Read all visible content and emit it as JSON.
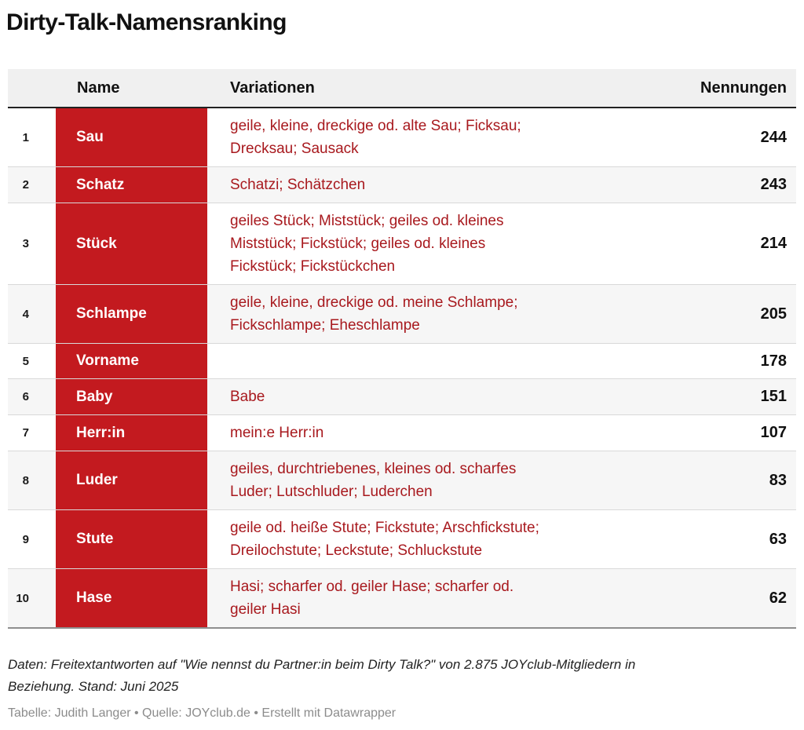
{
  "title": "Dirty-Talk-Namensranking",
  "colors": {
    "accent_red": "#c31a1f",
    "variation_text_red": "#a8191e",
    "header_bg": "#f0f0f0",
    "row_alt_bg": "#f6f6f6"
  },
  "table": {
    "headers": {
      "rank": "",
      "name": "Name",
      "variations": "Variationen",
      "mentions": "Nennungen"
    },
    "rows": [
      {
        "rank": "1",
        "name": "Sau",
        "variations": "geile, kleine, dreckige od. alte Sau; Ficksau;\nDrecksau; Sausack",
        "mentions": "244"
      },
      {
        "rank": "2",
        "name": "Schatz",
        "variations": "Schatzi; Schätzchen",
        "mentions": "243"
      },
      {
        "rank": "3",
        "name": "Stück",
        "variations": "geiles Stück; Miststück; geiles od. kleines\nMiststück; Fickstück; geiles od. kleines\nFickstück; Fickstückchen",
        "mentions": "214"
      },
      {
        "rank": "4",
        "name": "Schlampe",
        "variations": "geile, kleine, dreckige od. meine Schlampe;\nFickschlampe; Eheschlampe",
        "mentions": "205"
      },
      {
        "rank": "5",
        "name": "Vorname",
        "variations": "",
        "mentions": "178"
      },
      {
        "rank": "6",
        "name": "Baby",
        "variations": "Babe",
        "mentions": "151"
      },
      {
        "rank": "7",
        "name": "Herr:in",
        "variations": "mein:e Herr:in",
        "mentions": "107"
      },
      {
        "rank": "8",
        "name": "Luder",
        "variations": "geiles, durchtriebenes, kleines od. scharfes\nLuder; Lutschluder; Luderchen",
        "mentions": "83"
      },
      {
        "rank": "9",
        "name": "Stute",
        "variations": "geile od. heiße Stute; Fickstute; Arschfickstute;\nDreilochstute; Leckstute; Schluckstute",
        "mentions": "63"
      },
      {
        "rank": "10",
        "name": "Hase",
        "variations": "Hasi; scharfer od. geiler Hase; scharfer od.\ngeiler Hasi",
        "mentions": "62"
      }
    ]
  },
  "footer": {
    "notes": "Daten: Freitextantworten auf \"Wie nennst du Partner:in beim Dirty Talk?\" von 2.875 JOYclub-Mitgliedern in\nBeziehung. Stand: Juni 2025",
    "credit": "Tabelle: Judith Langer • Quelle: JOYclub.de • Erstellt mit Datawrapper"
  },
  "chart_data": {
    "type": "table",
    "title": "Dirty-Talk-Namensranking",
    "columns": [
      "",
      "Name",
      "Variationen",
      "Nennungen"
    ],
    "rows": [
      [
        1,
        "Sau",
        "geile, kleine, dreckige od. alte Sau; Ficksau; Drecksau; Sausack",
        244
      ],
      [
        2,
        "Schatz",
        "Schatzi; Schätzchen",
        243
      ],
      [
        3,
        "Stück",
        "geiles Stück; Miststück; geiles od. kleines Miststück; Fickstück; geiles od. kleines Fickstück; Fickstückchen",
        214
      ],
      [
        4,
        "Schlampe",
        "geile, kleine, dreckige od. meine Schlampe; Fickschlampe; Eheschlampe",
        205
      ],
      [
        5,
        "Vorname",
        "",
        178
      ],
      [
        6,
        "Baby",
        "Babe",
        151
      ],
      [
        7,
        "Herr:in",
        "mein:e Herr:in",
        107
      ],
      [
        8,
        "Luder",
        "geiles, durchtriebenes, kleines od. scharfes Luder; Lutschluder; Luderchen",
        83
      ],
      [
        9,
        "Stute",
        "geile od. heiße Stute; Fickstute; Arschfickstute; Dreilochstute; Leckstute; Schluckstute",
        63
      ],
      [
        10,
        "Hase",
        "Hasi; scharfer od. geiler Hase; scharfer od. geiler Hasi",
        62
      ]
    ]
  }
}
